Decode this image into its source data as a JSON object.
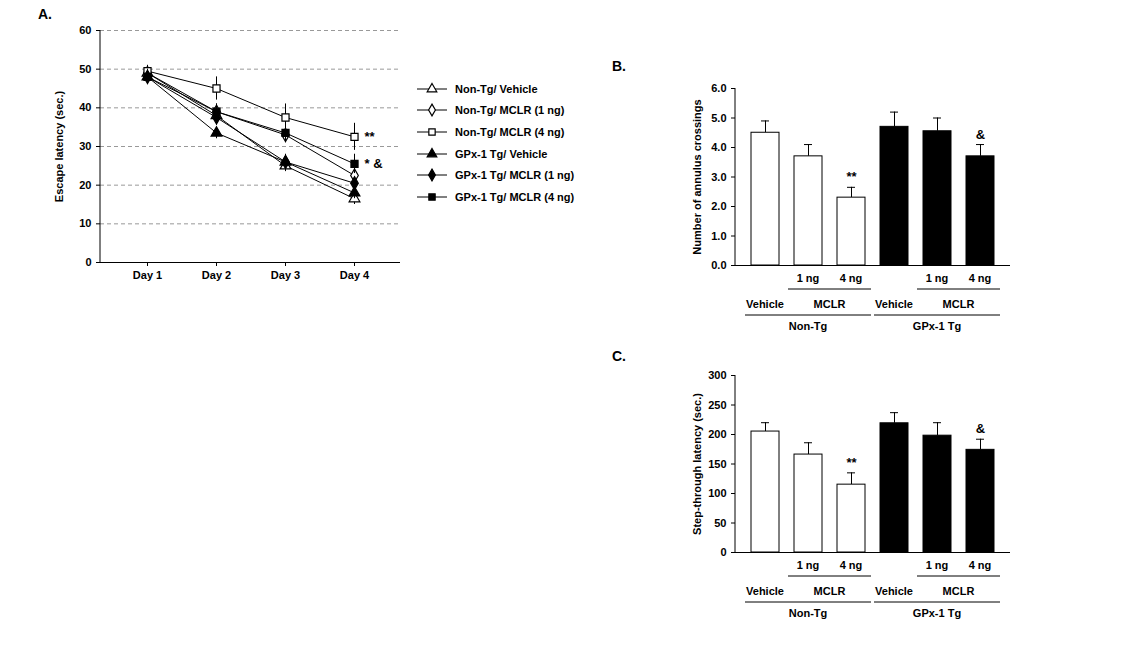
{
  "chart_data": [
    {
      "type": "line",
      "title": "A.",
      "y_label": "Escape latency (sec.)",
      "categories": [
        "Day 1",
        "Day 2",
        "Day 3",
        "Day 4"
      ],
      "ylim": [
        0,
        60
      ],
      "yticks": [
        0,
        10,
        20,
        30,
        40,
        50,
        60
      ],
      "grid": true,
      "legend": "right",
      "series": [
        {
          "name": "Non-Tg/ Vehicle",
          "color": "#000000",
          "marker": "triangle-open",
          "values": [
            49,
            38,
            25,
            16.5
          ],
          "errors": [
            1.5,
            2,
            1.5,
            1.5
          ]
        },
        {
          "name": "Non-Tg/ MCLR (1 ng)",
          "color": "#000000",
          "marker": "diamond-open",
          "values": [
            49,
            39,
            33,
            22.5
          ],
          "errors": [
            1.5,
            2,
            2,
            2
          ]
        },
        {
          "name": "Non-Tg/ MCLR (4 ng)",
          "color": "#000000",
          "marker": "square-open",
          "values": [
            49.5,
            45,
            37.5,
            32.5
          ],
          "errors": [
            1.5,
            3,
            3.5,
            3.5
          ],
          "significance": "**"
        },
        {
          "name": "GPx-1 Tg/ Vehicle",
          "color": "#000000",
          "marker": "triangle",
          "values": [
            48,
            33.5,
            26,
            18
          ],
          "errors": [
            1.5,
            1.5,
            1.5,
            1.5
          ]
        },
        {
          "name": "GPx-1 Tg/ MCLR (1 ng)",
          "color": "#000000",
          "marker": "diamond",
          "values": [
            48,
            37.5,
            26,
            20.5
          ],
          "errors": [
            1.5,
            2,
            2,
            1.5
          ]
        },
        {
          "name": "GPx-1 Tg/ MCLR (4 ng)",
          "color": "#000000",
          "marker": "square",
          "values": [
            48,
            39,
            33.5,
            25.5
          ],
          "errors": [
            2,
            2,
            2.5,
            2.5
          ],
          "significance": "* &"
        }
      ]
    },
    {
      "type": "bar",
      "title": "B.",
      "y_label": "Number of annulus crossings",
      "categories": [
        "Vehicle",
        "1 ng",
        "4 ng",
        "Vehicle",
        "1 ng",
        "4 ng"
      ],
      "values": [
        4.5,
        3.7,
        2.3,
        4.7,
        4.55,
        3.7
      ],
      "errors": [
        0.4,
        0.4,
        0.35,
        0.5,
        0.45,
        0.4
      ],
      "colors": [
        "#ffffff",
        "#ffffff",
        "#ffffff",
        "#000000",
        "#000000",
        "#000000"
      ],
      "significance": [
        null,
        null,
        "**",
        null,
        null,
        "&"
      ],
      "subgroups": [
        {
          "label": "MCLR",
          "span": [
            1,
            2
          ]
        },
        {
          "label": "MCLR",
          "span": [
            4,
            5
          ]
        }
      ],
      "groups": [
        {
          "label": "Non-Tg",
          "span": [
            0,
            2
          ]
        },
        {
          "label": "GPx-1 Tg",
          "span": [
            3,
            5
          ]
        }
      ],
      "ylim": [
        0,
        6
      ],
      "yticks": [
        0,
        1,
        2,
        3,
        4,
        5,
        6
      ]
    },
    {
      "type": "bar",
      "title": "C.",
      "y_label": "Step-through latency (sec.)",
      "categories": [
        "Vehicle",
        "1 ng",
        "4 ng",
        "Vehicle",
        "1 ng",
        "4 ng"
      ],
      "values": [
        205,
        166,
        115,
        219,
        198,
        174
      ],
      "errors": [
        15,
        20,
        20,
        18,
        22,
        18
      ],
      "colors": [
        "#ffffff",
        "#ffffff",
        "#ffffff",
        "#000000",
        "#000000",
        "#000000"
      ],
      "significance": [
        null,
        null,
        "**",
        null,
        null,
        "&"
      ],
      "subgroups": [
        {
          "label": "MCLR",
          "span": [
            1,
            2
          ]
        },
        {
          "label": "MCLR",
          "span": [
            4,
            5
          ]
        }
      ],
      "groups": [
        {
          "label": "Non-Tg",
          "span": [
            0,
            2
          ]
        },
        {
          "label": "GPx-1 Tg",
          "span": [
            3,
            5
          ]
        }
      ],
      "ylim": [
        0,
        300
      ],
      "yticks": [
        0,
        50,
        100,
        150,
        200,
        250,
        300
      ]
    }
  ]
}
